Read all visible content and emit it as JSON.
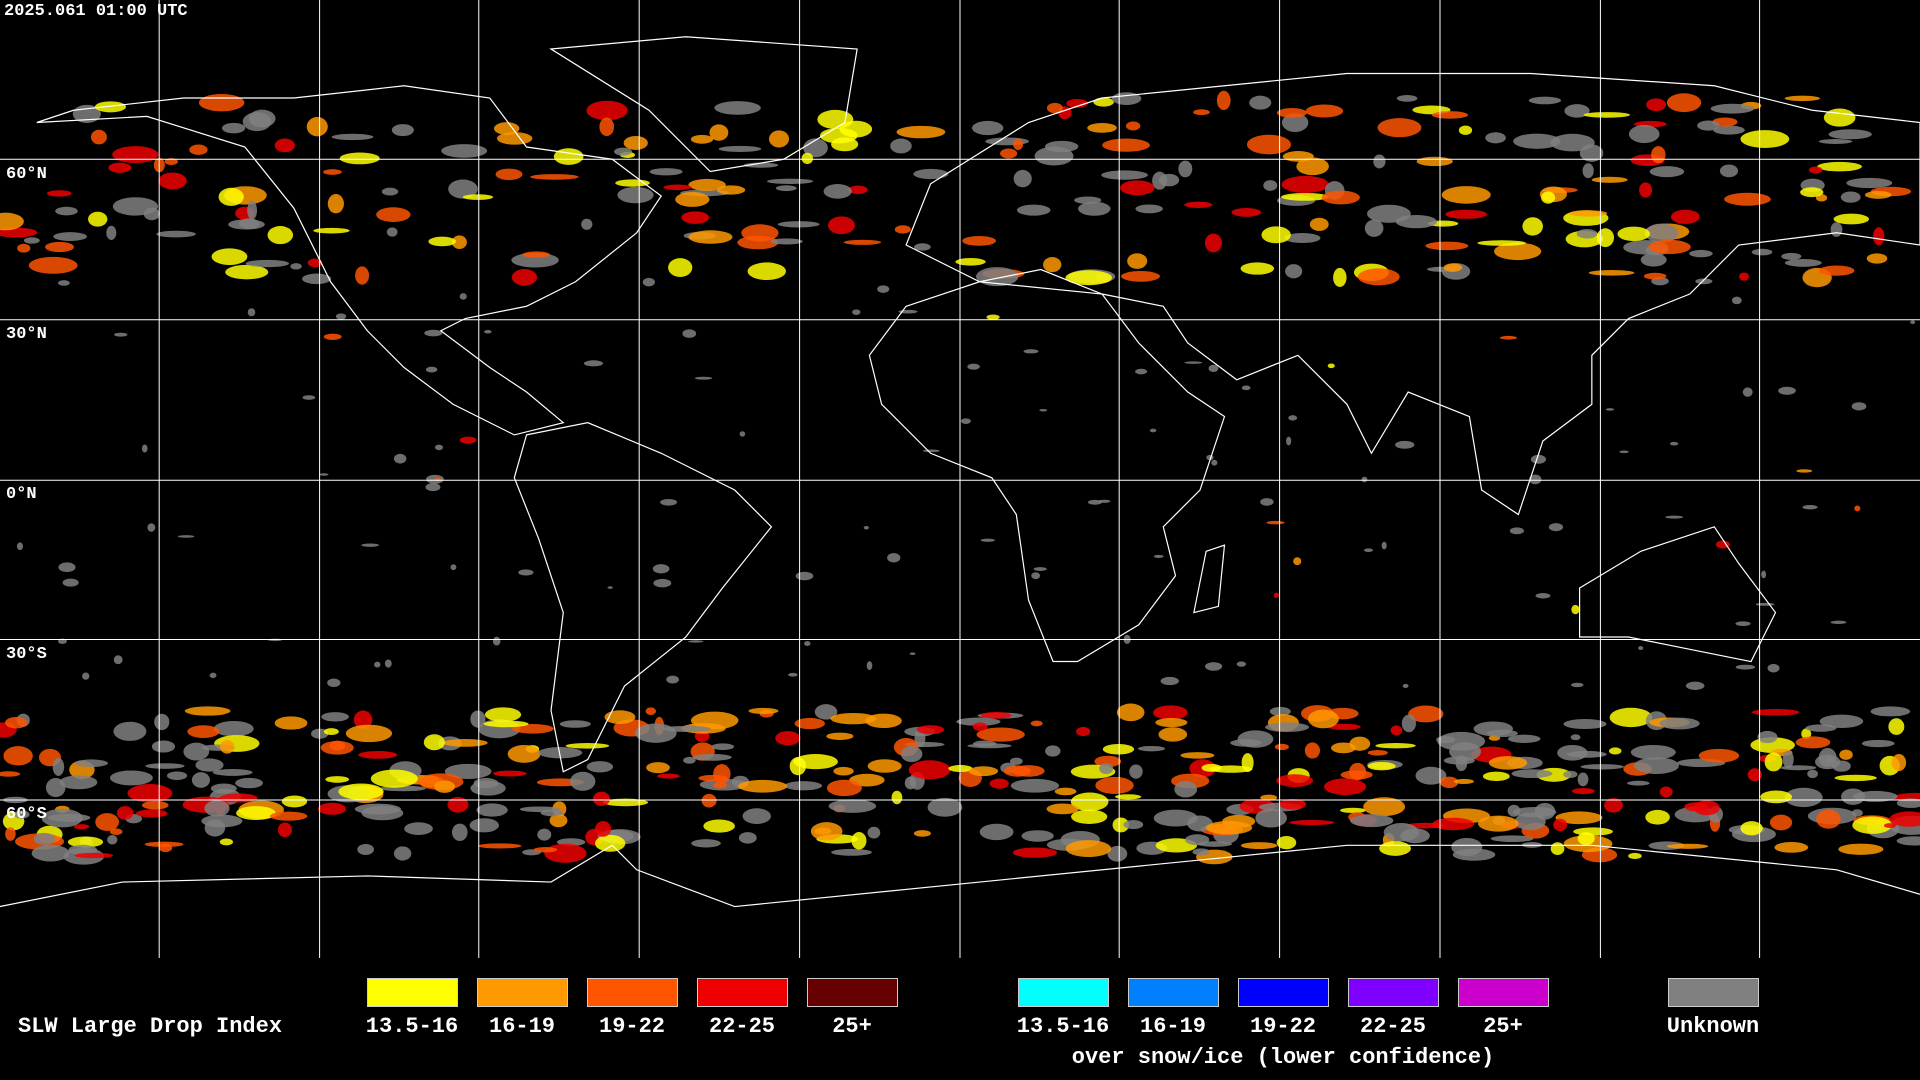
{
  "timestamp": "2025.061 01:00 UTC",
  "lat_labels": [
    "60°N",
    "30°N",
    "0°N",
    "30°S",
    "60°S"
  ],
  "legend": {
    "title": "SLW Large Drop Index",
    "groups": [
      {
        "items": [
          {
            "label": "13.5-16",
            "color": "#ffff00"
          },
          {
            "label": "16-19",
            "color": "#ff9900"
          },
          {
            "label": "19-22",
            "color": "#ff5500"
          },
          {
            "label": "22-25",
            "color": "#ee0000"
          },
          {
            "label": "25+",
            "color": "#660000"
          }
        ]
      },
      {
        "items": [
          {
            "label": "13.5-16",
            "color": "#00ffff"
          },
          {
            "label": "16-19",
            "color": "#0080ff"
          },
          {
            "label": "19-22",
            "color": "#0000ff"
          },
          {
            "label": "22-25",
            "color": "#8000ff"
          },
          {
            "label": "25+",
            "color": "#cc00cc"
          }
        ],
        "caption": "over snow/ice (lower confidence)"
      }
    ],
    "unknown": {
      "label": "Unknown",
      "color": "#808080"
    }
  }
}
